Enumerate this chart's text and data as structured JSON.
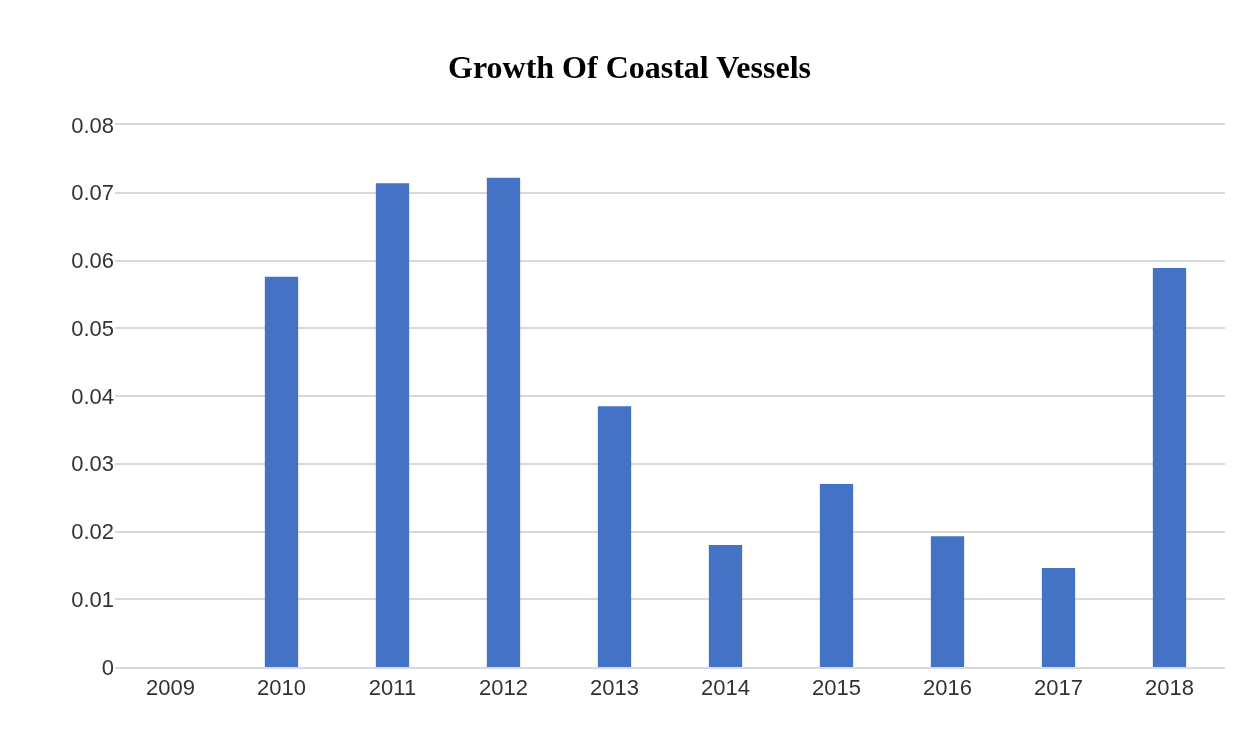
{
  "chart_data": {
    "type": "bar",
    "title": "Growth Of Coastal Vessels",
    "categories": [
      "2009",
      "2010",
      "2011",
      "2012",
      "2013",
      "2014",
      "2015",
      "2016",
      "2017",
      "2018"
    ],
    "values": [
      0,
      0.0576,
      0.0714,
      0.0722,
      0.0385,
      0.018,
      0.027,
      0.0193,
      0.0146,
      0.0589
    ],
    "color": "#4472c4",
    "ylim": [
      0,
      0.08
    ],
    "yticks": [
      "0",
      0.01,
      0.02,
      0.03,
      0.04,
      0.05,
      0.06,
      0.07,
      0.08
    ],
    "grid": "y"
  }
}
